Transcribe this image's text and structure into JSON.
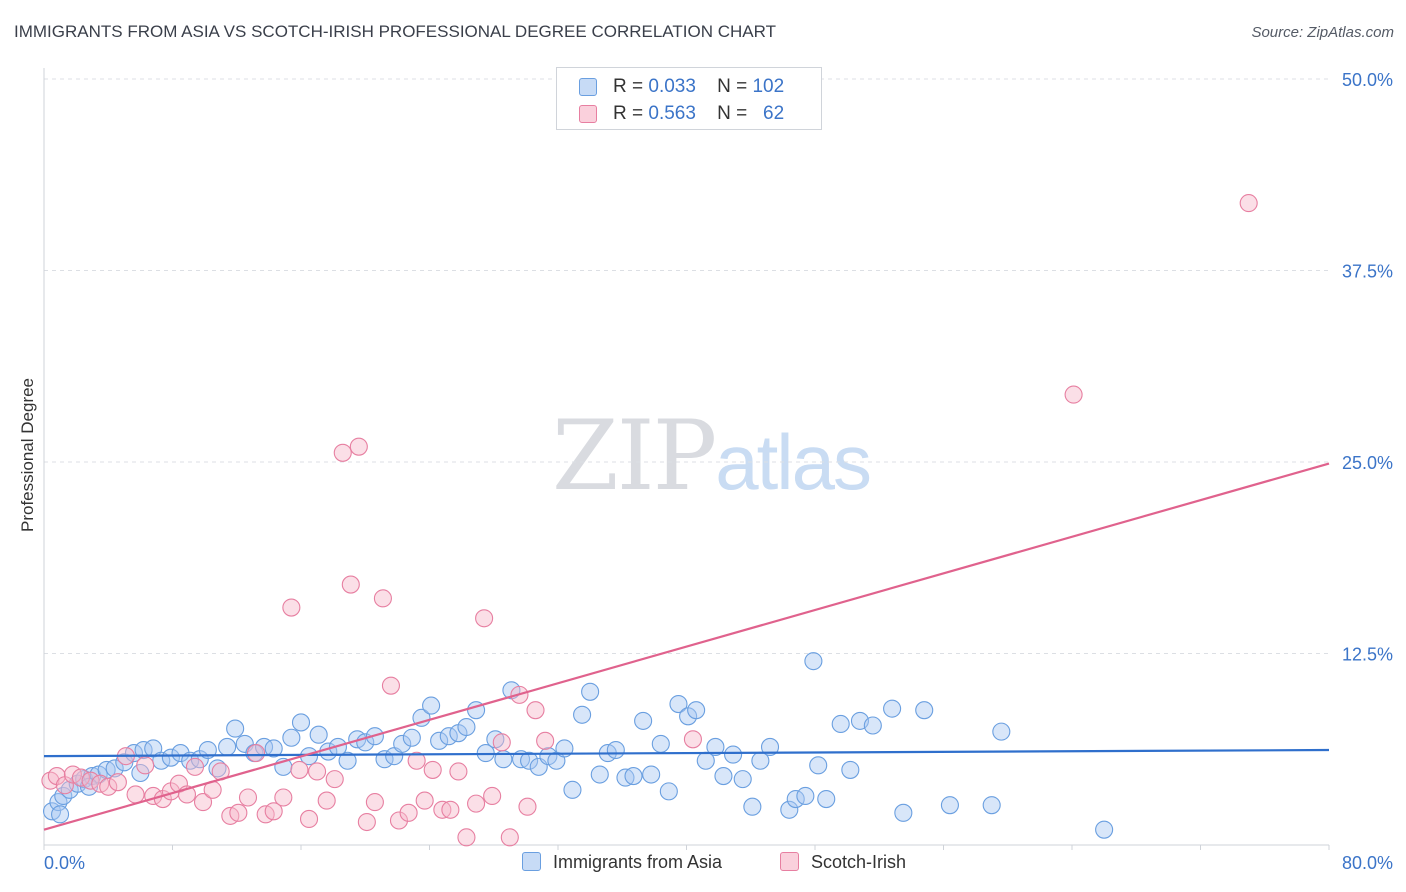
{
  "header": {
    "title": "IMMIGRANTS FROM ASIA VS SCOTCH-IRISH PROFESSIONAL DEGREE CORRELATION CHART",
    "source": "Source: ZipAtlas.com"
  },
  "watermark": {
    "zip": "ZIP",
    "atlas": "atlas"
  },
  "legend": {
    "rows": [
      {
        "r_label": "R =",
        "r_value": "0.033",
        "n_label": "N =",
        "n_value": "102",
        "color": "#a9c8f2"
      },
      {
        "r_label": "R =",
        "r_value": "0.563",
        "n_label": "N =",
        "n_value": "62",
        "color": "#f6b7c9"
      }
    ]
  },
  "chart_data": {
    "type": "scatter",
    "title": "IMMIGRANTS FROM ASIA VS SCOTCH-IRISH PROFESSIONAL DEGREE CORRELATION CHART",
    "xlabel": "",
    "ylabel": "Professional Degree",
    "xlim": [
      0,
      80
    ],
    "ylim": [
      0,
      50
    ],
    "x_tick_labels": [
      "0.0%",
      "80.0%"
    ],
    "y_ticks": [
      12.5,
      25.0,
      37.5,
      50.0
    ],
    "y_tick_labels": [
      "12.5%",
      "25.0%",
      "37.5%",
      "50.0%"
    ],
    "grid": "horizontal dashed",
    "legend_placement": "top-center",
    "series": [
      {
        "name": "Immigrants from Asia",
        "color": "#6a9fe0",
        "fill": "#a9c8f2",
        "trend": {
          "x": [
            0,
            80
          ],
          "y": [
            5.8,
            6.2
          ]
        },
        "points": [
          [
            0.5,
            2.2
          ],
          [
            0.9,
            2.8
          ],
          [
            1.2,
            3.2
          ],
          [
            1.6,
            3.6
          ],
          [
            2.1,
            4.0
          ],
          [
            2.5,
            4.3
          ],
          [
            3.0,
            4.5
          ],
          [
            3.4,
            4.6
          ],
          [
            3.9,
            4.9
          ],
          [
            4.4,
            5.0
          ],
          [
            5.0,
            5.4
          ],
          [
            5.6,
            6.0
          ],
          [
            6.2,
            6.2
          ],
          [
            6.8,
            6.3
          ],
          [
            7.3,
            5.5
          ],
          [
            7.9,
            5.7
          ],
          [
            8.5,
            6.0
          ],
          [
            9.1,
            5.5
          ],
          [
            9.7,
            5.6
          ],
          [
            10.2,
            6.2
          ],
          [
            10.8,
            5.0
          ],
          [
            11.4,
            6.4
          ],
          [
            11.9,
            7.6
          ],
          [
            12.5,
            6.6
          ],
          [
            13.1,
            6.0
          ],
          [
            13.7,
            6.4
          ],
          [
            14.3,
            6.3
          ],
          [
            14.9,
            5.1
          ],
          [
            15.4,
            7.0
          ],
          [
            16.0,
            8.0
          ],
          [
            16.5,
            5.8
          ],
          [
            17.1,
            7.2
          ],
          [
            17.7,
            6.1
          ],
          [
            18.3,
            6.4
          ],
          [
            18.9,
            5.5
          ],
          [
            19.5,
            6.9
          ],
          [
            20.0,
            6.7
          ],
          [
            20.6,
            7.1
          ],
          [
            21.2,
            5.6
          ],
          [
            21.8,
            5.8
          ],
          [
            22.3,
            6.6
          ],
          [
            22.9,
            7.0
          ],
          [
            23.5,
            8.3
          ],
          [
            24.1,
            9.1
          ],
          [
            24.6,
            6.8
          ],
          [
            25.2,
            7.1
          ],
          [
            25.8,
            7.3
          ],
          [
            26.3,
            7.7
          ],
          [
            26.9,
            8.8
          ],
          [
            27.5,
            6.0
          ],
          [
            28.1,
            6.9
          ],
          [
            28.6,
            5.6
          ],
          [
            29.1,
            10.1
          ],
          [
            29.7,
            5.6
          ],
          [
            30.2,
            5.5
          ],
          [
            30.8,
            5.1
          ],
          [
            31.4,
            5.8
          ],
          [
            31.9,
            5.5
          ],
          [
            32.4,
            6.3
          ],
          [
            32.9,
            3.6
          ],
          [
            33.5,
            8.5
          ],
          [
            34.0,
            10.0
          ],
          [
            34.6,
            4.6
          ],
          [
            35.1,
            6.0
          ],
          [
            35.6,
            6.2
          ],
          [
            36.2,
            4.4
          ],
          [
            36.7,
            4.5
          ],
          [
            37.3,
            8.1
          ],
          [
            37.8,
            4.6
          ],
          [
            38.4,
            6.6
          ],
          [
            38.9,
            3.5
          ],
          [
            39.5,
            9.2
          ],
          [
            40.1,
            8.4
          ],
          [
            40.6,
            8.8
          ],
          [
            41.2,
            5.5
          ],
          [
            41.8,
            6.4
          ],
          [
            42.3,
            4.5
          ],
          [
            42.9,
            5.9
          ],
          [
            43.5,
            4.3
          ],
          [
            44.1,
            2.5
          ],
          [
            44.6,
            5.5
          ],
          [
            45.2,
            6.4
          ],
          [
            46.4,
            2.3
          ],
          [
            46.8,
            3.0
          ],
          [
            47.4,
            3.2
          ],
          [
            47.9,
            12.0
          ],
          [
            48.2,
            5.2
          ],
          [
            48.7,
            3.0
          ],
          [
            49.6,
            7.9
          ],
          [
            50.2,
            4.9
          ],
          [
            50.8,
            8.1
          ],
          [
            51.6,
            7.8
          ],
          [
            52.8,
            8.9
          ],
          [
            53.5,
            2.1
          ],
          [
            54.8,
            8.8
          ],
          [
            56.4,
            2.6
          ],
          [
            59.0,
            2.6
          ],
          [
            59.6,
            7.4
          ],
          [
            66.0,
            1.0
          ],
          [
            1.0,
            2.0
          ],
          [
            2.8,
            3.8
          ],
          [
            6.0,
            4.7
          ]
        ]
      },
      {
        "name": "Scotch-Irish",
        "color": "#e77fa1",
        "fill": "#f6b7c9",
        "trend": {
          "x": [
            0,
            80
          ],
          "y": [
            1.0,
            24.9
          ]
        },
        "points": [
          [
            0.4,
            4.2
          ],
          [
            0.8,
            4.5
          ],
          [
            1.3,
            3.9
          ],
          [
            1.8,
            4.6
          ],
          [
            2.3,
            4.4
          ],
          [
            2.9,
            4.2
          ],
          [
            3.5,
            4.0
          ],
          [
            4.0,
            3.8
          ],
          [
            4.6,
            4.1
          ],
          [
            5.1,
            5.8
          ],
          [
            5.7,
            3.3
          ],
          [
            6.3,
            5.2
          ],
          [
            6.8,
            3.2
          ],
          [
            7.4,
            3.0
          ],
          [
            7.9,
            3.5
          ],
          [
            8.4,
            4.0
          ],
          [
            8.9,
            3.3
          ],
          [
            9.4,
            5.1
          ],
          [
            9.9,
            2.8
          ],
          [
            10.5,
            3.6
          ],
          [
            11.0,
            4.8
          ],
          [
            11.6,
            1.9
          ],
          [
            12.1,
            2.1
          ],
          [
            12.7,
            3.1
          ],
          [
            13.2,
            6.0
          ],
          [
            13.8,
            2.0
          ],
          [
            14.3,
            2.2
          ],
          [
            14.9,
            3.1
          ],
          [
            15.4,
            15.5
          ],
          [
            15.9,
            4.9
          ],
          [
            16.5,
            1.7
          ],
          [
            17.0,
            4.8
          ],
          [
            17.6,
            2.9
          ],
          [
            18.1,
            4.3
          ],
          [
            18.6,
            25.6
          ],
          [
            19.1,
            17.0
          ],
          [
            19.6,
            26.0
          ],
          [
            20.1,
            1.5
          ],
          [
            20.6,
            2.8
          ],
          [
            21.1,
            16.1
          ],
          [
            21.6,
            10.4
          ],
          [
            22.1,
            1.6
          ],
          [
            22.7,
            2.1
          ],
          [
            23.2,
            5.5
          ],
          [
            23.7,
            2.9
          ],
          [
            24.2,
            4.9
          ],
          [
            24.8,
            2.3
          ],
          [
            25.3,
            2.3
          ],
          [
            25.8,
            4.8
          ],
          [
            26.3,
            0.5
          ],
          [
            26.9,
            2.7
          ],
          [
            27.4,
            14.8
          ],
          [
            27.9,
            3.2
          ],
          [
            28.5,
            6.7
          ],
          [
            29.0,
            0.5
          ],
          [
            29.6,
            9.8
          ],
          [
            30.1,
            2.5
          ],
          [
            30.6,
            8.8
          ],
          [
            31.2,
            6.8
          ],
          [
            40.4,
            6.9
          ],
          [
            64.1,
            29.4
          ],
          [
            75.0,
            41.9
          ]
        ]
      }
    ]
  },
  "bottom_legend": [
    {
      "label": "Immigrants from Asia"
    },
    {
      "label": "Scotch-Irish"
    }
  ]
}
